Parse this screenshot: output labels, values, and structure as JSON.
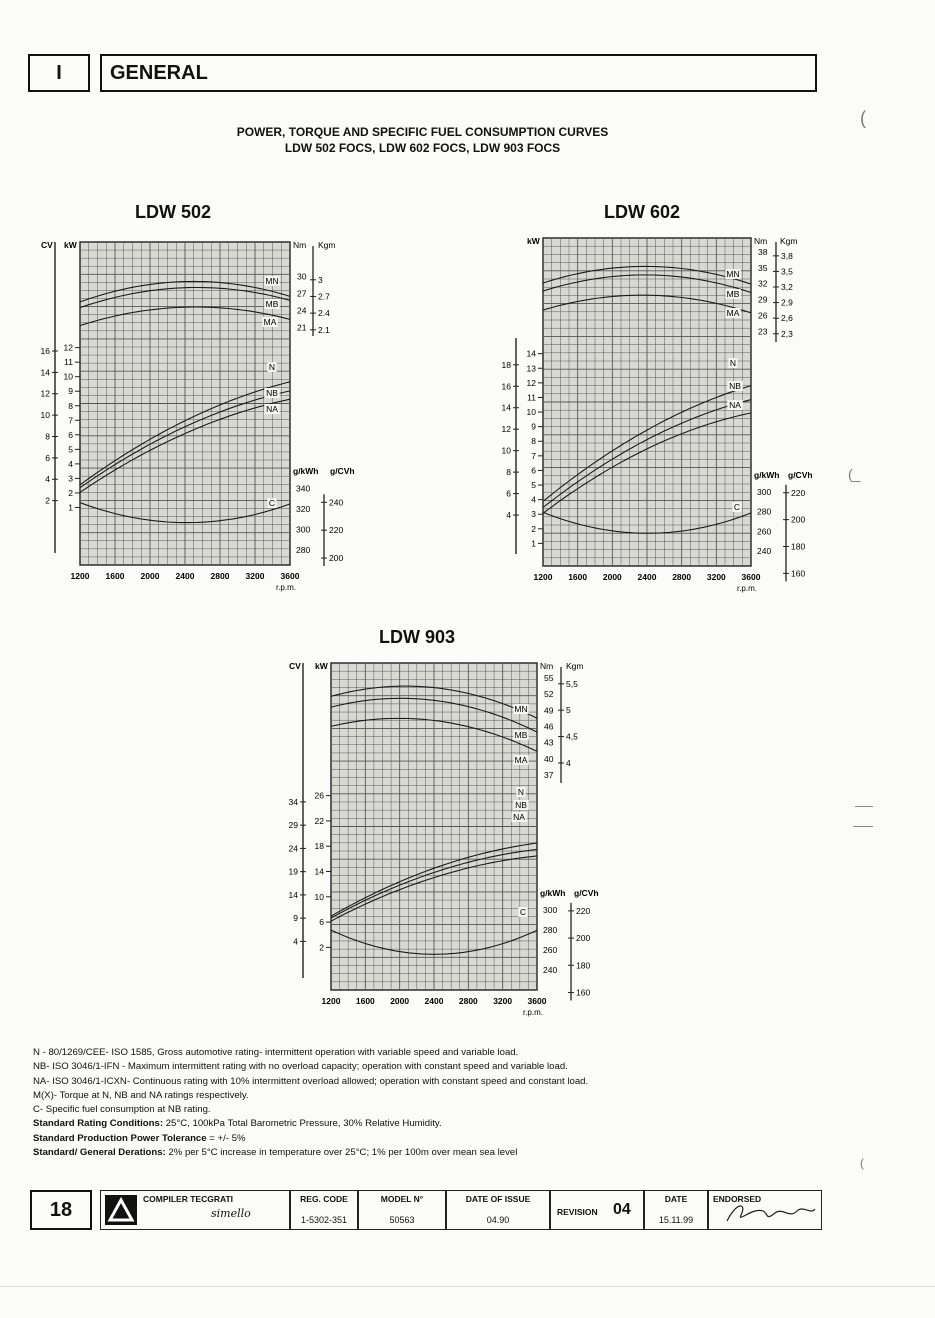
{
  "header": {
    "section": "I",
    "title": "GENERAL"
  },
  "title": {
    "line1": "POWER, TORQUE AND SPECIFIC FUEL CONSUMPTION CURVES",
    "line2": "LDW 502 FOCS, LDW 602 FOCS, LDW 903 FOCS"
  },
  "chart_data": [
    {
      "type": "line",
      "title": "LDW 502",
      "xlabel": "r.p.m.",
      "x_ticks": [
        "1200",
        "1600",
        "2000",
        "2400",
        "2800",
        "3200",
        "3600"
      ],
      "xlim": [
        1200,
        3600
      ],
      "left_axis": {
        "cv_label": "CV",
        "kw_label": "kW",
        "cv_ticks": [
          "2",
          "4",
          "6",
          "8",
          "10",
          "12",
          "14",
          "16"
        ],
        "kw_ticks": [
          "1",
          "2",
          "3",
          "4",
          "5",
          "6",
          "7",
          "8",
          "9",
          "10",
          "11",
          "12"
        ]
      },
      "torque_axis": {
        "nm_label": "Nm",
        "kgm_label": "Kgm",
        "nm_ticks": [
          "21",
          "24",
          "27",
          "30"
        ],
        "kgm_ticks": [
          "2.1",
          "2.4",
          "2.7",
          "3"
        ]
      },
      "fuel_axis": {
        "gkwh_label": "g/kWh",
        "gcvh_label": "g/CVh",
        "gkwh_ticks": [
          "280",
          "300",
          "320",
          "340"
        ],
        "gcvh_ticks": [
          "200",
          "220",
          "240"
        ]
      },
      "power_series": [
        {
          "name": "N",
          "x": [
            1200,
            1600,
            2000,
            2400,
            2800,
            3200,
            3600
          ],
          "y": [
            2.6,
            4.2,
            5.6,
            7.0,
            8.1,
            9.0,
            9.6
          ]
        },
        {
          "name": "NB",
          "x": [
            1200,
            1600,
            2000,
            2400,
            2800,
            3200,
            3600
          ],
          "y": [
            2.4,
            3.9,
            5.3,
            6.6,
            7.6,
            8.4,
            9.0
          ]
        },
        {
          "name": "NA",
          "x": [
            1200,
            1600,
            2000,
            2400,
            2800,
            3200,
            3600
          ],
          "y": [
            2.1,
            3.5,
            4.9,
            6.1,
            7.1,
            7.9,
            8.4
          ]
        }
      ],
      "torque_series": [
        {
          "name": "MN",
          "x": [
            1200,
            1600,
            2000,
            2400,
            2800,
            3200,
            3600
          ],
          "y": [
            25.3,
            27.7,
            28.7,
            29.0,
            28.8,
            28.0,
            26.6
          ]
        },
        {
          "name": "MB",
          "x": [
            1200,
            1600,
            2000,
            2400,
            2800,
            3200,
            3600
          ],
          "y": [
            24.3,
            26.6,
            27.6,
            27.9,
            27.8,
            27.1,
            25.9
          ]
        },
        {
          "name": "MA",
          "x": [
            1200,
            1600,
            2000,
            2400,
            2800,
            3200,
            3600
          ],
          "y": [
            21.2,
            23.2,
            24.2,
            24.5,
            24.4,
            23.7,
            22.5
          ]
        }
      ],
      "fuel_series": [
        {
          "name": "C",
          "x": [
            1200,
            1600,
            2000,
            2400,
            2800,
            3200,
            3600
          ],
          "y": [
            325,
            316,
            310,
            307,
            307,
            313,
            326
          ]
        }
      ]
    },
    {
      "type": "line",
      "title": "LDW 602",
      "xlabel": "r.p.m.",
      "x_ticks": [
        "1200",
        "1600",
        "2000",
        "2400",
        "2800",
        "3200",
        "3600"
      ],
      "xlim": [
        1200,
        3600
      ],
      "left_axis": {
        "cv_label": "",
        "kw_label": "kW",
        "cv_ticks": [
          "4",
          "6",
          "8",
          "10",
          "12",
          "14",
          "16",
          "18"
        ],
        "kw_ticks": [
          "1",
          "2",
          "3",
          "4",
          "5",
          "6",
          "7",
          "8",
          "9",
          "10",
          "11",
          "12",
          "13",
          "14"
        ]
      },
      "torque_axis": {
        "nm_label": "Nm",
        "kgm_label": "Kgm",
        "nm_ticks": [
          "23",
          "26",
          "29",
          "32",
          "35",
          "38"
        ],
        "kgm_ticks": [
          "2,3",
          "2,6",
          "2,9",
          "3,2",
          "3,5",
          "3,8"
        ]
      },
      "fuel_axis": {
        "gkwh_label": "g/kWh",
        "gcvh_label": "g/CVh",
        "gkwh_ticks": [
          "240",
          "260",
          "280",
          "300"
        ],
        "gcvh_ticks": [
          "160",
          "180",
          "200",
          "220"
        ]
      },
      "power_series": [
        {
          "name": "N",
          "x": [
            1200,
            1600,
            2000,
            2400,
            2800,
            3200,
            3600
          ],
          "y": [
            3.9,
            5.7,
            7.3,
            8.8,
            10.0,
            11.0,
            11.8
          ]
        },
        {
          "name": "NB",
          "x": [
            1200,
            1600,
            2000,
            2400,
            2800,
            3200,
            3600
          ],
          "y": [
            3.5,
            5.2,
            6.7,
            8.1,
            9.3,
            10.2,
            10.8
          ]
        },
        {
          "name": "NA",
          "x": [
            1200,
            1600,
            2000,
            2400,
            2800,
            3200,
            3600
          ],
          "y": [
            3.1,
            4.7,
            6.2,
            7.5,
            8.5,
            9.4,
            9.9
          ]
        }
      ],
      "torque_series": [
        {
          "name": "MN",
          "x": [
            1200,
            1600,
            2000,
            2400,
            2800,
            3200,
            3600
          ],
          "y": [
            31.9,
            34.2,
            35.1,
            35.2,
            34.7,
            33.6,
            32.1
          ]
        },
        {
          "name": "MB",
          "x": [
            1200,
            1600,
            2000,
            2400,
            2800,
            3200,
            3600
          ],
          "y": [
            30.4,
            32.6,
            33.5,
            33.6,
            33.1,
            32.0,
            30.5
          ]
        },
        {
          "name": "MA",
          "x": [
            1200,
            1600,
            2000,
            2400,
            2800,
            3200,
            3600
          ],
          "y": [
            27.0,
            28.7,
            29.6,
            29.8,
            29.4,
            28.3,
            26.5
          ]
        }
      ],
      "fuel_series": [
        {
          "name": "C",
          "x": [
            1200,
            1600,
            2000,
            2400,
            2800,
            3200,
            3600
          ],
          "y": [
            278,
            269,
            262,
            258,
            259,
            266,
            280
          ]
        }
      ]
    },
    {
      "type": "line",
      "title": "LDW 903",
      "xlabel": "r.p.m.",
      "x_ticks": [
        "1200",
        "1600",
        "2000",
        "2400",
        "2800",
        "3200",
        "3600"
      ],
      "xlim": [
        1200,
        3600
      ],
      "left_axis": {
        "cv_label": "CV",
        "kw_label": "kW",
        "cv_ticks": [
          "4",
          "9",
          "14",
          "19",
          "24",
          "29",
          "34"
        ],
        "kw_ticks": [
          "2",
          "6",
          "10",
          "14",
          "18",
          "22",
          "26"
        ]
      },
      "torque_axis": {
        "nm_label": "Nm",
        "kgm_label": "Kgm",
        "nm_ticks": [
          "37",
          "40",
          "43",
          "46",
          "49",
          "52",
          "55"
        ],
        "kgm_ticks": [
          "4",
          "4,5",
          "5",
          "5,5"
        ]
      },
      "fuel_axis": {
        "gkwh_label": "g/kWh",
        "gcvh_label": "g/CVh",
        "gkwh_ticks": [
          "240",
          "260",
          "280",
          "300"
        ],
        "gcvh_ticks": [
          "160",
          "180",
          "200",
          "220"
        ]
      },
      "power_series": [
        {
          "name": "N",
          "x": [
            1200,
            1600,
            2000,
            2400,
            2800,
            3200,
            3600
          ],
          "y": [
            7.0,
            9.8,
            12.3,
            14.5,
            16.3,
            17.7,
            18.4
          ]
        },
        {
          "name": "NB",
          "x": [
            1200,
            1600,
            2000,
            2400,
            2800,
            3200,
            3600
          ],
          "y": [
            6.7,
            9.4,
            11.8,
            13.8,
            15.5,
            16.8,
            17.4
          ]
        },
        {
          "name": "NA",
          "x": [
            1200,
            1600,
            2000,
            2400,
            2800,
            3200,
            3600
          ],
          "y": [
            6.2,
            8.8,
            11.1,
            13.0,
            14.6,
            15.8,
            16.4
          ]
        }
      ],
      "torque_series": [
        {
          "name": "MN",
          "x": [
            1200,
            1600,
            2000,
            2400,
            2800,
            3200,
            3600
          ],
          "y": [
            51.5,
            53.1,
            53.5,
            53.2,
            52.1,
            50.2,
            47.6
          ]
        },
        {
          "name": "MB",
          "x": [
            1200,
            1600,
            2000,
            2400,
            2800,
            3200,
            3600
          ],
          "y": [
            49.5,
            51.0,
            51.2,
            50.8,
            49.7,
            47.7,
            45.0
          ]
        },
        {
          "name": "MA",
          "x": [
            1200,
            1600,
            2000,
            2400,
            2800,
            3200,
            3600
          ],
          "y": [
            46.0,
            47.2,
            47.5,
            47.1,
            46.0,
            44.0,
            41.4
          ]
        }
      ],
      "fuel_series": [
        {
          "name": "C",
          "x": [
            1200,
            1600,
            2000,
            2400,
            2800,
            3200,
            3600
          ],
          "y": [
            280,
            266,
            259,
            256,
            258,
            266,
            280
          ]
        }
      ]
    }
  ],
  "notes": {
    "n": "N - 80/1269/CEE- ISO 1585, Gross automotive rating- intermittent operation with variable speed and variable load.",
    "nb": "NB- ISO 3046/1-IFN - Maximum intermittent rating with no overload capacity; operation with constant speed and variable load.",
    "na": "NA- ISO 3046/1-ICXN- Continuous rating with 10% intermittent overload allowed; operation with constant speed and constant load.",
    "mx": "M(X)- Torque at N, NB and NA ratings respectively.",
    "c": "C- Specific fuel consumption at NB rating.",
    "src_label": "Standard Rating Conditions:",
    "src_text": " 25°C, 100kPa Total Barometric Pressure, 30% Relative Humidity.",
    "sppt_label": "Standard Production Power Tolerance",
    "sppt_text": " = +/- 5%",
    "sgd_label": "Standard/ General Derations:",
    "sgd_text": " 2% per 5°C increase in temperature over 25°C; 1% per 100m over mean sea level"
  },
  "footer": {
    "page": "18",
    "compiler_label": "COMPILER TECGRATI",
    "compiler_sign": "simello",
    "reg_code_label": "REG. CODE",
    "reg_code": "1-5302-351",
    "model_label": "MODEL N°",
    "model": "50563",
    "date_issue_label": "DATE OF ISSUE",
    "date_issue": "04.90",
    "revision_label": "REVISION",
    "revision": "04",
    "date_label": "DATE",
    "date": "15.11.99",
    "endorsed_label": "ENDORSED"
  }
}
